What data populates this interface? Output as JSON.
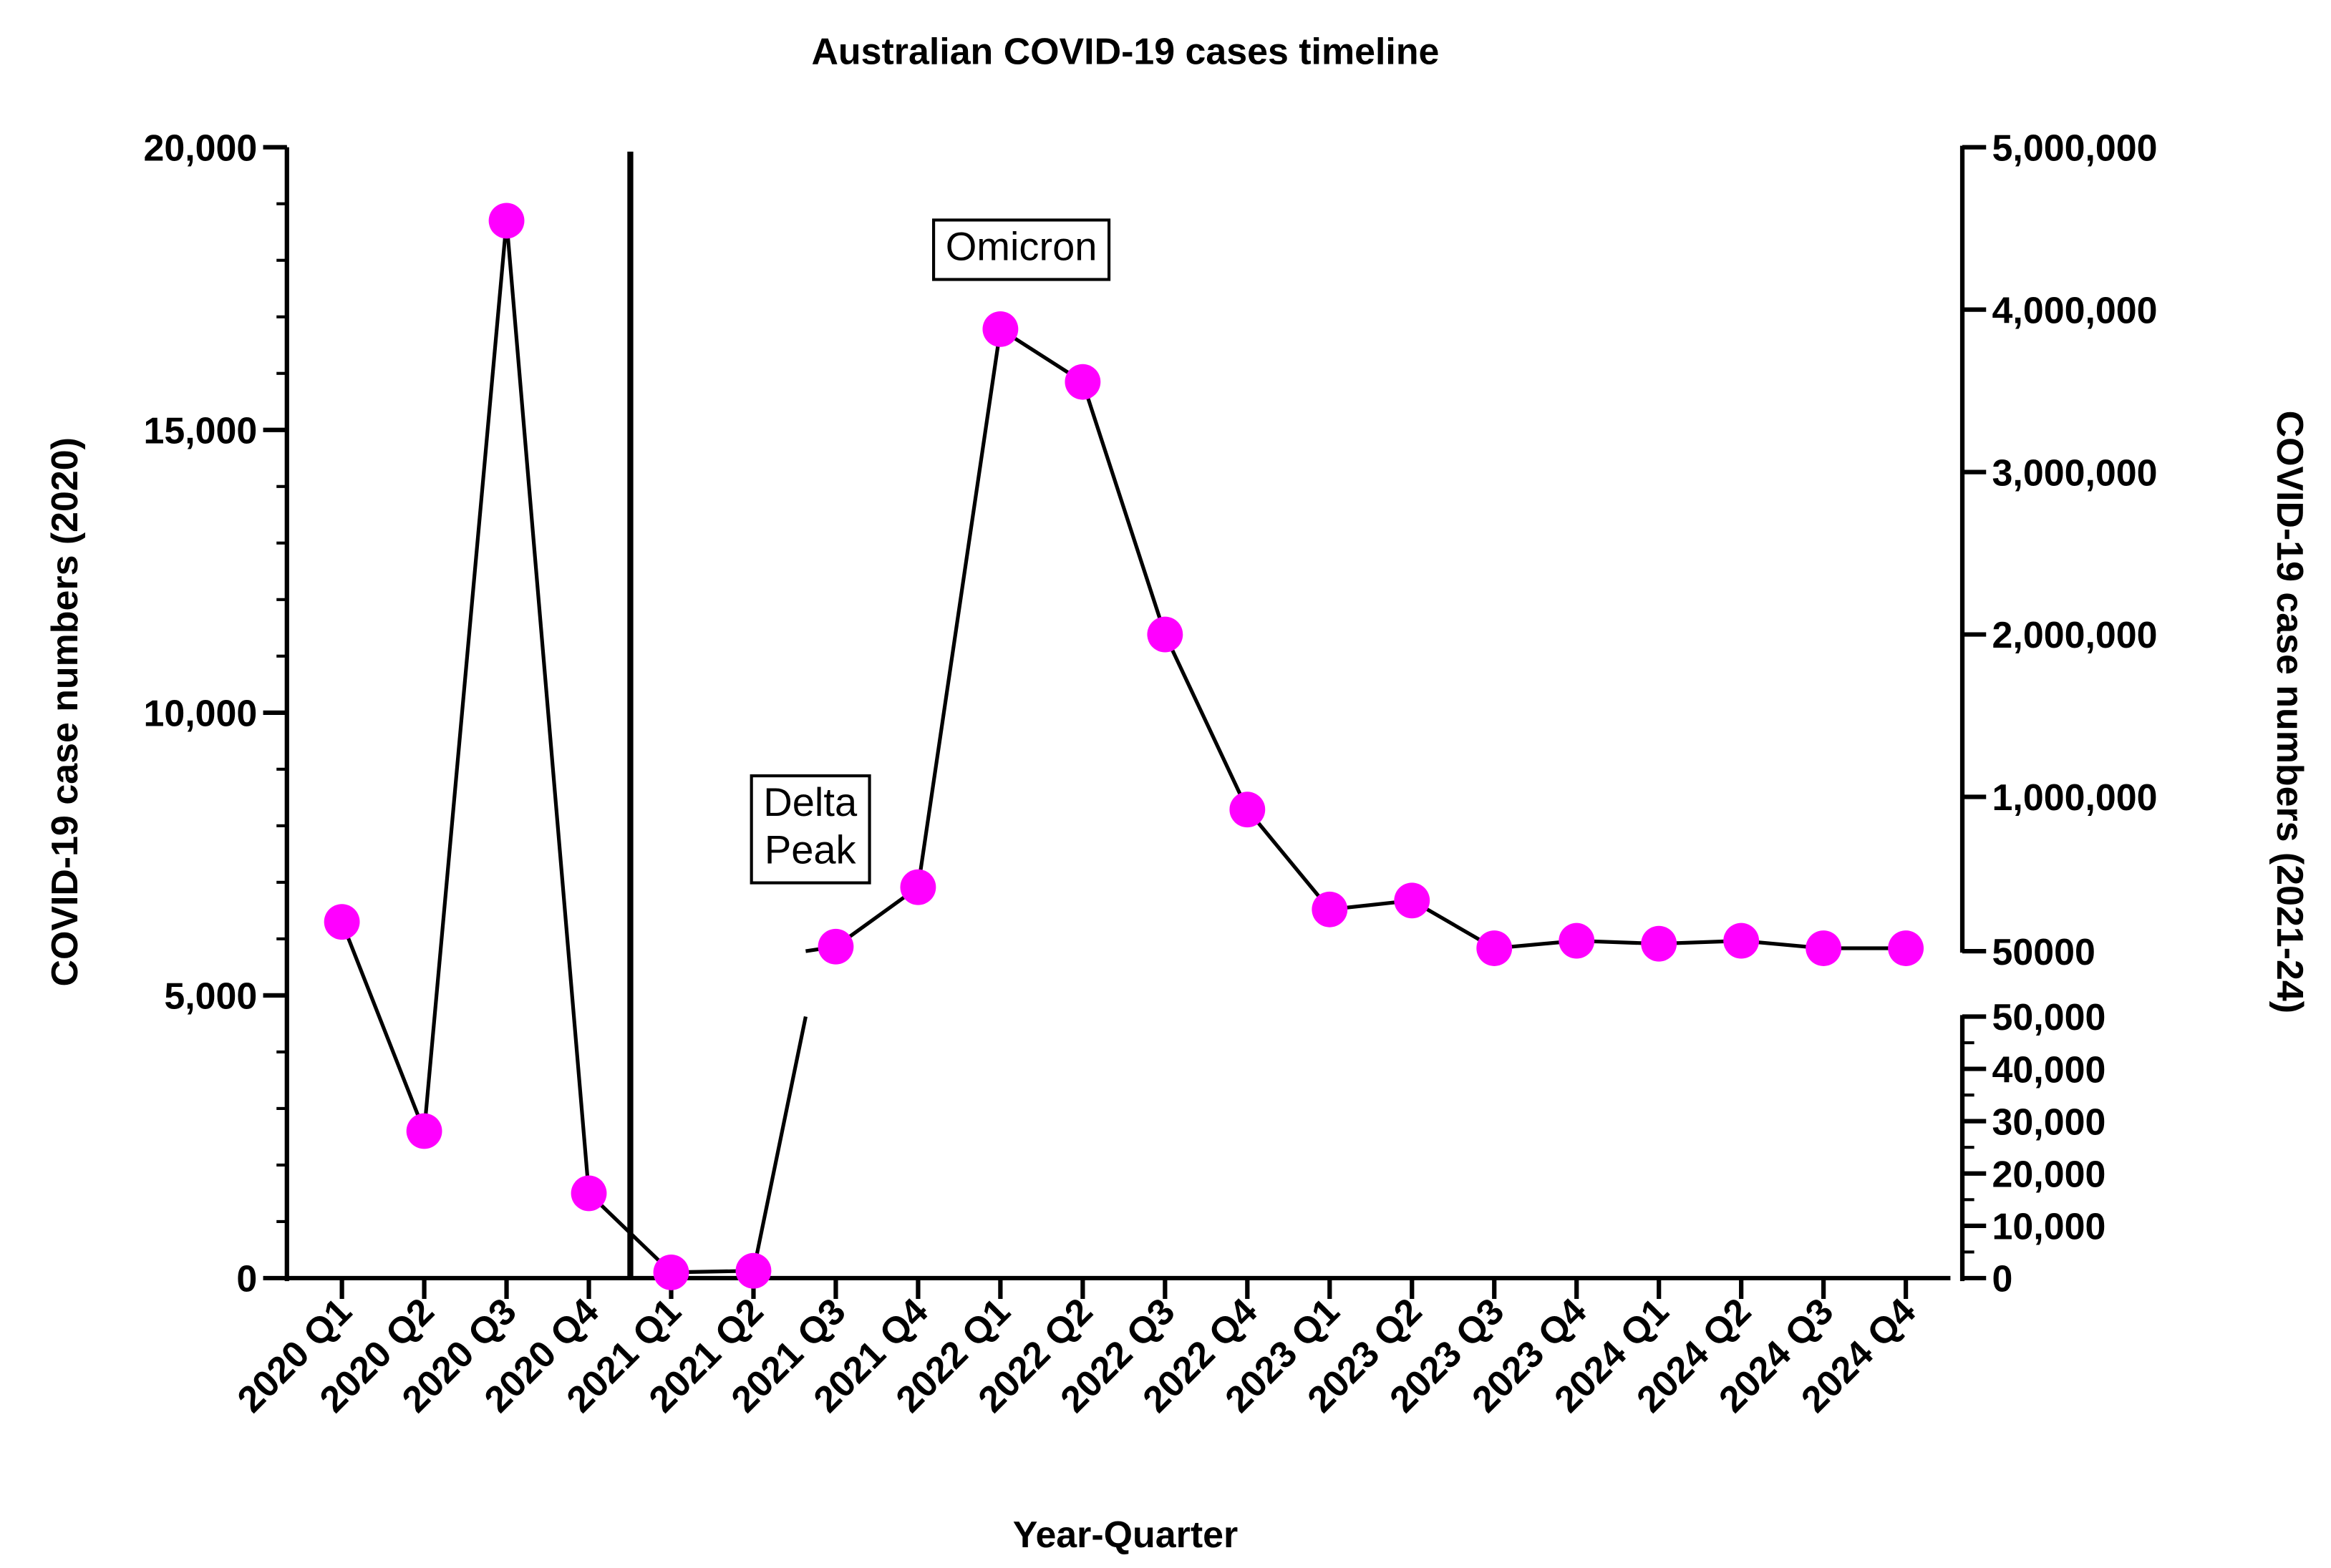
{
  "chart_data": {
    "type": "line",
    "title": "Australian COVID-19 cases timeline",
    "x_label": "Year-Quarter",
    "y_label": "COVID-19 case numbers (2020)",
    "y2_label": "COVID-19 case numbers (2021-24)",
    "categories": [
      "2020 Q1",
      "2020 Q2",
      "2020 Q3",
      "2020 Q4",
      "2021 Q1",
      "2021 Q2",
      "2021 Q3",
      "2021 Q4",
      "2022 Q1",
      "2022 Q2",
      "2022 Q3",
      "2022 Q4",
      "2023 Q1",
      "2023 Q2",
      "2023 Q3",
      "2023 Q4",
      "2024 Q1",
      "2024 Q2",
      "2024 Q3",
      "2024 Q4"
    ],
    "series": [
      {
        "name": "2020",
        "color": "#ff00ff",
        "axis": "y",
        "values": [
          6300,
          2600,
          18700,
          1500,
          null,
          null,
          null,
          null,
          null,
          null,
          null,
          null,
          null,
          null,
          null,
          null,
          null,
          null,
          null,
          null
        ]
      },
      {
        "name": "2021-24",
        "color": "#ff00ff",
        "axis": "y2",
        "values": [
          null,
          null,
          null,
          null,
          1100,
          1400,
          78000,
          444000,
          3880000,
          3555000,
          2000000,
          922000,
          307000,
          362000,
          68000,
          114000,
          96000,
          114000,
          68000,
          68000
        ]
      }
    ],
    "ylim": [
      0,
      20000
    ],
    "yticks": [
      0,
      {
        "value": 5000,
        "label": "5,000"
      },
      {
        "value": 10000,
        "label": "10,000"
      },
      {
        "value": 15000,
        "label": "15,000"
      },
      {
        "value": 20000,
        "label": "20,000"
      }
    ],
    "y2_segments": [
      {
        "y2lim": [
          0,
          50000
        ],
        "y2ticks": [
          0,
          {
            "value": 10000,
            "label": "10,000"
          },
          {
            "value": 20000,
            "label": "20,000"
          },
          {
            "value": 30000,
            "label": "30,000"
          },
          {
            "value": 40000,
            "label": "40,000"
          },
          {
            "value": 50000,
            "label": "50,000"
          }
        ]
      },
      {
        "y2lim": [
          50000,
          5000000
        ],
        "y2ticks": [
          50000,
          {
            "value": 1000000,
            "label": "1,000,000"
          },
          {
            "value": 2000000,
            "label": "2,000,000"
          },
          {
            "value": 3000000,
            "label": "3,000,000"
          },
          {
            "value": 4000000,
            "label": "4,000,000"
          },
          {
            "value": 5000000,
            "label": "5,000,000"
          }
        ]
      }
    ],
    "annotations": [
      "Omicron",
      "Delta Peak"
    ]
  }
}
